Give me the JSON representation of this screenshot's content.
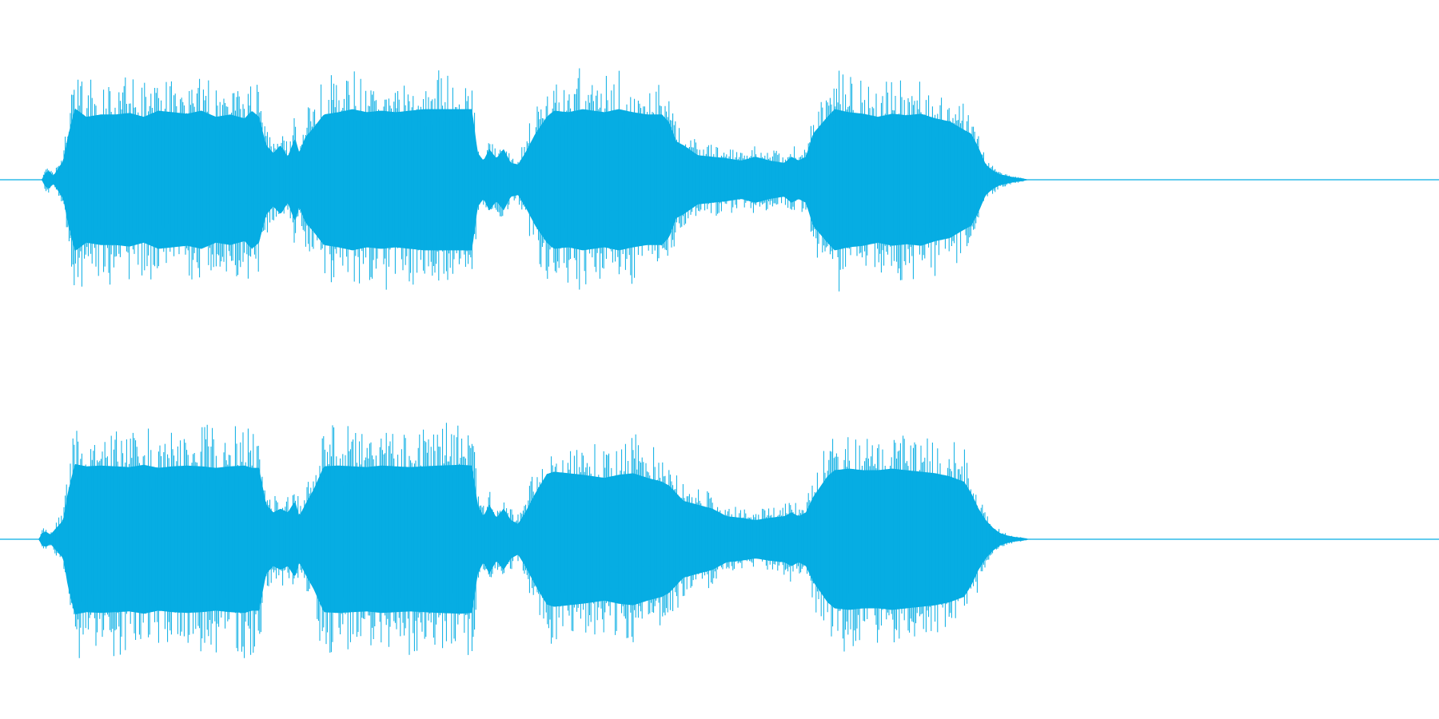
{
  "chart_data": {
    "type": "area",
    "title": "",
    "xlabel": "",
    "ylabel": "",
    "grid": false,
    "legend": "none",
    "color": "#06ADE3",
    "ylim": [
      -1,
      1
    ],
    "xlim": [
      0,
      1
    ],
    "channels": [
      {
        "envelope": [
          [
            0.0,
            0.0
          ],
          [
            0.029,
            0.0
          ],
          [
            0.031,
            0.08
          ],
          [
            0.034,
            0.12
          ],
          [
            0.037,
            0.05
          ],
          [
            0.044,
            0.25
          ],
          [
            0.047,
            0.55
          ],
          [
            0.052,
            0.93
          ],
          [
            0.06,
            0.82
          ],
          [
            0.07,
            0.85
          ],
          [
            0.08,
            0.85
          ],
          [
            0.09,
            0.87
          ],
          [
            0.1,
            0.82
          ],
          [
            0.11,
            0.9
          ],
          [
            0.12,
            0.88
          ],
          [
            0.13,
            0.86
          ],
          [
            0.14,
            0.9
          ],
          [
            0.15,
            0.82
          ],
          [
            0.16,
            0.85
          ],
          [
            0.17,
            0.8
          ],
          [
            0.175,
            0.9
          ],
          [
            0.18,
            0.82
          ],
          [
            0.185,
            0.45
          ],
          [
            0.19,
            0.35
          ],
          [
            0.195,
            0.45
          ],
          [
            0.2,
            0.3
          ],
          [
            0.205,
            0.55
          ],
          [
            0.208,
            0.35
          ],
          [
            0.212,
            0.55
          ],
          [
            0.218,
            0.68
          ],
          [
            0.225,
            0.85
          ],
          [
            0.235,
            0.88
          ],
          [
            0.245,
            0.92
          ],
          [
            0.255,
            0.88
          ],
          [
            0.265,
            0.9
          ],
          [
            0.275,
            0.88
          ],
          [
            0.285,
            0.9
          ],
          [
            0.295,
            0.92
          ],
          [
            0.305,
            0.92
          ],
          [
            0.32,
            0.92
          ],
          [
            0.328,
            0.92
          ],
          [
            0.332,
            0.35
          ],
          [
            0.336,
            0.25
          ],
          [
            0.34,
            0.4
          ],
          [
            0.345,
            0.28
          ],
          [
            0.35,
            0.4
          ],
          [
            0.355,
            0.22
          ],
          [
            0.36,
            0.2
          ],
          [
            0.365,
            0.35
          ],
          [
            0.372,
            0.6
          ],
          [
            0.38,
            0.82
          ],
          [
            0.385,
            0.9
          ],
          [
            0.395,
            0.88
          ],
          [
            0.405,
            0.92
          ],
          [
            0.42,
            0.88
          ],
          [
            0.43,
            0.92
          ],
          [
            0.44,
            0.88
          ],
          [
            0.45,
            0.85
          ],
          [
            0.46,
            0.85
          ],
          [
            0.465,
            0.75
          ],
          [
            0.47,
            0.5
          ],
          [
            0.475,
            0.45
          ],
          [
            0.485,
            0.32
          ],
          [
            0.495,
            0.3
          ],
          [
            0.505,
            0.28
          ],
          [
            0.515,
            0.25
          ],
          [
            0.525,
            0.3
          ],
          [
            0.535,
            0.25
          ],
          [
            0.545,
            0.22
          ],
          [
            0.55,
            0.3
          ],
          [
            0.555,
            0.25
          ],
          [
            0.56,
            0.3
          ],
          [
            0.565,
            0.6
          ],
          [
            0.575,
            0.82
          ],
          [
            0.58,
            0.92
          ],
          [
            0.59,
            0.88
          ],
          [
            0.6,
            0.86
          ],
          [
            0.61,
            0.82
          ],
          [
            0.62,
            0.86
          ],
          [
            0.63,
            0.84
          ],
          [
            0.64,
            0.86
          ],
          [
            0.65,
            0.8
          ],
          [
            0.66,
            0.76
          ],
          [
            0.67,
            0.65
          ],
          [
            0.675,
            0.6
          ],
          [
            0.68,
            0.42
          ],
          [
            0.685,
            0.2
          ],
          [
            0.69,
            0.12
          ],
          [
            0.695,
            0.07
          ],
          [
            0.7,
            0.05
          ],
          [
            0.705,
            0.03
          ],
          [
            0.71,
            0.02
          ],
          [
            0.715,
            0.0
          ],
          [
            1.0,
            0.0
          ]
        ]
      },
      {
        "envelope": [
          [
            0.0,
            0.0
          ],
          [
            0.027,
            0.0
          ],
          [
            0.029,
            0.08
          ],
          [
            0.032,
            0.1
          ],
          [
            0.035,
            0.06
          ],
          [
            0.044,
            0.25
          ],
          [
            0.047,
            0.6
          ],
          [
            0.052,
            0.98
          ],
          [
            0.06,
            0.95
          ],
          [
            0.07,
            0.96
          ],
          [
            0.08,
            0.95
          ],
          [
            0.09,
            0.94
          ],
          [
            0.1,
            0.97
          ],
          [
            0.11,
            0.93
          ],
          [
            0.12,
            0.95
          ],
          [
            0.13,
            0.96
          ],
          [
            0.14,
            0.95
          ],
          [
            0.15,
            0.93
          ],
          [
            0.16,
            0.95
          ],
          [
            0.17,
            0.96
          ],
          [
            0.175,
            0.93
          ],
          [
            0.18,
            0.93
          ],
          [
            0.185,
            0.45
          ],
          [
            0.19,
            0.35
          ],
          [
            0.195,
            0.4
          ],
          [
            0.2,
            0.35
          ],
          [
            0.205,
            0.5
          ],
          [
            0.208,
            0.3
          ],
          [
            0.212,
            0.45
          ],
          [
            0.218,
            0.65
          ],
          [
            0.225,
            0.95
          ],
          [
            0.235,
            0.96
          ],
          [
            0.245,
            0.95
          ],
          [
            0.255,
            0.94
          ],
          [
            0.265,
            0.96
          ],
          [
            0.275,
            0.95
          ],
          [
            0.285,
            0.94
          ],
          [
            0.295,
            0.95
          ],
          [
            0.305,
            0.96
          ],
          [
            0.32,
            0.97
          ],
          [
            0.328,
            0.96
          ],
          [
            0.332,
            0.45
          ],
          [
            0.336,
            0.3
          ],
          [
            0.34,
            0.45
          ],
          [
            0.345,
            0.28
          ],
          [
            0.35,
            0.4
          ],
          [
            0.355,
            0.25
          ],
          [
            0.36,
            0.2
          ],
          [
            0.365,
            0.35
          ],
          [
            0.372,
            0.6
          ],
          [
            0.38,
            0.85
          ],
          [
            0.385,
            0.88
          ],
          [
            0.395,
            0.86
          ],
          [
            0.405,
            0.84
          ],
          [
            0.42,
            0.8
          ],
          [
            0.43,
            0.84
          ],
          [
            0.44,
            0.86
          ],
          [
            0.45,
            0.8
          ],
          [
            0.46,
            0.75
          ],
          [
            0.465,
            0.7
          ],
          [
            0.47,
            0.6
          ],
          [
            0.475,
            0.5
          ],
          [
            0.485,
            0.45
          ],
          [
            0.495,
            0.4
          ],
          [
            0.505,
            0.3
          ],
          [
            0.515,
            0.28
          ],
          [
            0.525,
            0.25
          ],
          [
            0.535,
            0.28
          ],
          [
            0.545,
            0.3
          ],
          [
            0.55,
            0.35
          ],
          [
            0.555,
            0.3
          ],
          [
            0.56,
            0.35
          ],
          [
            0.565,
            0.55
          ],
          [
            0.575,
            0.82
          ],
          [
            0.58,
            0.9
          ],
          [
            0.59,
            0.92
          ],
          [
            0.6,
            0.9
          ],
          [
            0.61,
            0.9
          ],
          [
            0.62,
            0.92
          ],
          [
            0.63,
            0.9
          ],
          [
            0.64,
            0.88
          ],
          [
            0.65,
            0.86
          ],
          [
            0.66,
            0.82
          ],
          [
            0.67,
            0.75
          ],
          [
            0.675,
            0.6
          ],
          [
            0.68,
            0.4
          ],
          [
            0.685,
            0.25
          ],
          [
            0.69,
            0.15
          ],
          [
            0.695,
            0.08
          ],
          [
            0.7,
            0.05
          ],
          [
            0.705,
            0.03
          ],
          [
            0.71,
            0.02
          ],
          [
            0.716,
            0.0
          ],
          [
            1.0,
            0.0
          ]
        ]
      }
    ]
  }
}
